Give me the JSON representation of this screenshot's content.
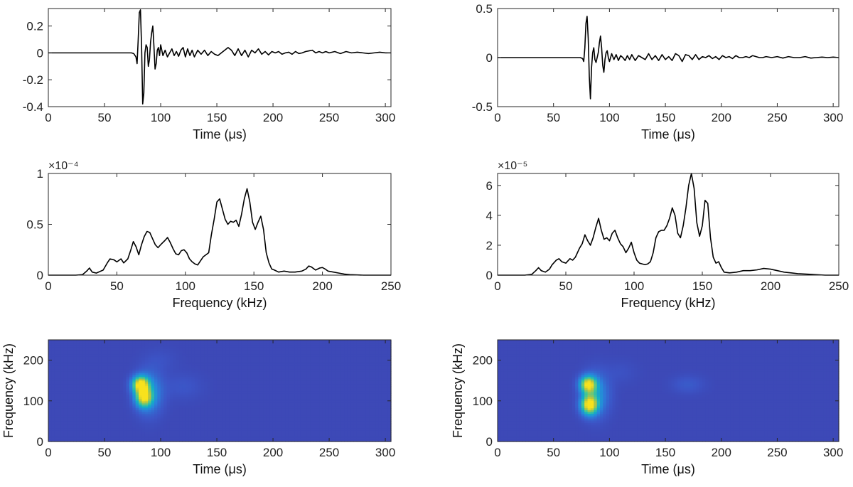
{
  "colors": {
    "line": "#000000",
    "axis": "#262626",
    "cmap": [
      "#3e2b8f",
      "#3c54c6",
      "#2a83dc",
      "#12aec6",
      "#4bc88f",
      "#b9c43e",
      "#f8e21d"
    ]
  },
  "chart_data": [
    {
      "id": "p11",
      "type": "line",
      "xlabel": "Time (μs)",
      "ylabel": "",
      "xlim": [
        0,
        305
      ],
      "ylim": [
        -0.4,
        0.33
      ],
      "xticks": [
        0,
        50,
        100,
        150,
        200,
        250,
        300
      ],
      "yticks": [
        -0.4,
        -0.2,
        0,
        0.2
      ],
      "xtick_labels": [
        "0",
        "50",
        "100",
        "150",
        "200",
        "250",
        "300"
      ],
      "ytick_labels": [
        "-0.4",
        "-0.2",
        "0",
        "0.2"
      ],
      "exponent": "",
      "series": [
        {
          "x": [
            0,
            70,
            74,
            76,
            78,
            79,
            80,
            81,
            82,
            83,
            84,
            85,
            86,
            87,
            88,
            89,
            90,
            91,
            92,
            93,
            94,
            95,
            96,
            97,
            98,
            99,
            100,
            102,
            104,
            106,
            108,
            110,
            112,
            114,
            116,
            118,
            120,
            122,
            124,
            126,
            128,
            130,
            133,
            136,
            139,
            142,
            145,
            148,
            151,
            154,
            157,
            160,
            163,
            166,
            169,
            172,
            175,
            178,
            181,
            184,
            187,
            190,
            193,
            196,
            199,
            202,
            205,
            208,
            211,
            214,
            217,
            220,
            223,
            226,
            229,
            232,
            235,
            238,
            241,
            244,
            247,
            250,
            255,
            260,
            265,
            270,
            275,
            280,
            285,
            290,
            295,
            300,
            305
          ],
          "y": [
            0,
            0,
            0,
            -0.005,
            -0.03,
            -0.08,
            0.1,
            0.3,
            0.32,
            0.05,
            -0.38,
            -0.3,
            0.0,
            0.06,
            0.04,
            -0.1,
            -0.05,
            0.08,
            0.15,
            0.2,
            0.05,
            -0.12,
            -0.08,
            0.02,
            0.04,
            -0.02,
            0.06,
            -0.02,
            0.02,
            -0.03,
            0.0,
            0.03,
            -0.02,
            0.01,
            -0.025,
            0.02,
            0.04,
            -0.03,
            0.03,
            -0.02,
            0.02,
            -0.03,
            0.02,
            -0.01,
            0.02,
            -0.02,
            0.01,
            -0.01,
            -0.02,
            0.0,
            0.02,
            0.04,
            0.02,
            -0.02,
            0.03,
            -0.02,
            0.02,
            -0.03,
            0.02,
            0.0,
            0.03,
            -0.01,
            0.01,
            -0.015,
            0.01,
            0.0,
            0.01,
            -0.01,
            0.0,
            0.005,
            -0.01,
            0.01,
            -0.005,
            0.0,
            0.01,
            0.015,
            0.02,
            0.0,
            0.01,
            0.0,
            0.01,
            0.0,
            0.01,
            -0.005,
            0.01,
            0.0,
            0.005,
            0.0,
            -0.005,
            0.0,
            0.005,
            0.0,
            0.0
          ]
        }
      ]
    },
    {
      "id": "p12",
      "type": "line",
      "xlabel": "Time (μs)",
      "ylabel": "",
      "xlim": [
        0,
        305
      ],
      "ylim": [
        -0.5,
        0.5
      ],
      "xticks": [
        0,
        50,
        100,
        150,
        200,
        250,
        300
      ],
      "yticks": [
        -0.5,
        0,
        0.5
      ],
      "xtick_labels": [
        "0",
        "50",
        "100",
        "150",
        "200",
        "250",
        "300"
      ],
      "ytick_labels": [
        "-0.5",
        "0",
        "0.5"
      ],
      "exponent": "",
      "series": [
        {
          "x": [
            0,
            70,
            74,
            76,
            77,
            78,
            79,
            80,
            81,
            82,
            83,
            84,
            85,
            86,
            87,
            88,
            89,
            90,
            91,
            92,
            93,
            94,
            95,
            96,
            97,
            98,
            99,
            100,
            102,
            104,
            106,
            108,
            110,
            112,
            114,
            116,
            118,
            120,
            123,
            126,
            129,
            132,
            135,
            138,
            141,
            144,
            147,
            150,
            153,
            156,
            159,
            162,
            165,
            168,
            171,
            174,
            177,
            180,
            183,
            186,
            189,
            192,
            195,
            198,
            201,
            204,
            207,
            210,
            213,
            216,
            219,
            222,
            225,
            228,
            231,
            234,
            237,
            240,
            245,
            250,
            255,
            260,
            265,
            270,
            275,
            280,
            285,
            290,
            295,
            300,
            305
          ],
          "y": [
            0,
            0,
            0,
            -0.01,
            -0.04,
            0.1,
            0.35,
            0.42,
            0.2,
            -0.2,
            -0.42,
            -0.1,
            0.05,
            0.1,
            -0.02,
            -0.05,
            0.0,
            0.05,
            0.15,
            0.22,
            0.1,
            -0.08,
            -0.15,
            -0.02,
            0.05,
            0.07,
            0.0,
            -0.04,
            0.04,
            -0.02,
            0.03,
            -0.03,
            0.02,
            0.0,
            -0.03,
            0.02,
            -0.02,
            0.03,
            -0.03,
            0.02,
            0.0,
            -0.02,
            0.04,
            -0.02,
            0.02,
            -0.03,
            0.03,
            -0.02,
            0.01,
            -0.03,
            0.04,
            0.02,
            -0.04,
            0.03,
            0.02,
            -0.02,
            0.03,
            -0.02,
            0.01,
            0.0,
            0.02,
            -0.01,
            0.01,
            -0.02,
            0.02,
            0.0,
            0.01,
            -0.01,
            0.02,
            0.0,
            0.0,
            0.01,
            0.0,
            0.02,
            0.01,
            0.0,
            0.0,
            0.01,
            0.0,
            0.01,
            -0.005,
            0.01,
            0.0,
            0.0,
            0.01,
            -0.005,
            0.0,
            0.005,
            0.0,
            0.005,
            0.0
          ]
        }
      ]
    },
    {
      "id": "p21",
      "type": "line",
      "xlabel": "Frequency (kHz)",
      "ylabel": "",
      "xlim": [
        0,
        250
      ],
      "ylim": [
        0,
        1
      ],
      "xticks": [
        0,
        50,
        100,
        150,
        200,
        250
      ],
      "yticks": [
        0,
        0.5,
        1
      ],
      "xtick_labels": [
        "0",
        "50",
        "100",
        "150",
        "200",
        "250"
      ],
      "ytick_labels": [
        "0",
        "0.5",
        "1"
      ],
      "exponent": "×10⁻⁴",
      "series": [
        {
          "x": [
            0,
            20,
            25,
            28,
            30,
            32,
            35,
            40,
            43,
            45,
            48,
            50,
            53,
            55,
            58,
            60,
            62,
            64,
            66,
            68,
            70,
            72,
            74,
            76,
            78,
            80,
            82,
            85,
            87,
            89,
            91,
            93,
            95,
            97,
            99,
            101,
            103,
            105,
            107,
            109,
            111,
            113,
            115,
            117,
            119,
            121,
            123,
            125,
            127,
            129,
            131,
            133,
            135,
            137,
            139,
            141,
            143,
            145,
            147,
            149,
            151,
            153,
            155,
            157,
            159,
            161,
            163,
            165,
            168,
            172,
            176,
            180,
            185,
            188,
            190,
            192,
            195,
            198,
            200,
            202,
            204,
            208,
            212,
            216,
            220,
            230,
            240,
            250
          ],
          "y": [
            0,
            0,
            0.005,
            0.04,
            0.07,
            0.03,
            0.02,
            0.05,
            0.12,
            0.16,
            0.15,
            0.13,
            0.16,
            0.12,
            0.16,
            0.24,
            0.33,
            0.28,
            0.2,
            0.3,
            0.38,
            0.43,
            0.42,
            0.36,
            0.3,
            0.27,
            0.3,
            0.34,
            0.37,
            0.32,
            0.26,
            0.21,
            0.2,
            0.24,
            0.25,
            0.22,
            0.16,
            0.13,
            0.11,
            0.1,
            0.14,
            0.18,
            0.2,
            0.22,
            0.4,
            0.55,
            0.72,
            0.75,
            0.65,
            0.55,
            0.5,
            0.53,
            0.52,
            0.54,
            0.48,
            0.6,
            0.75,
            0.85,
            0.72,
            0.52,
            0.45,
            0.52,
            0.58,
            0.45,
            0.22,
            0.12,
            0.06,
            0.05,
            0.03,
            0.04,
            0.03,
            0.03,
            0.04,
            0.06,
            0.09,
            0.08,
            0.05,
            0.07,
            0.075,
            0.06,
            0.04,
            0.03,
            0.02,
            0.01,
            0.005,
            0.0,
            0.0,
            0.0
          ]
        }
      ]
    },
    {
      "id": "p22",
      "type": "line",
      "xlabel": "Frequency (kHz)",
      "ylabel": "",
      "xlim": [
        0,
        250
      ],
      "ylim": [
        0,
        6.8
      ],
      "xticks": [
        0,
        50,
        100,
        150,
        200,
        250
      ],
      "yticks": [
        0,
        2,
        4,
        6
      ],
      "xtick_labels": [
        "0",
        "50",
        "100",
        "150",
        "200",
        "250"
      ],
      "ytick_labels": [
        "0",
        "2",
        "4",
        "6"
      ],
      "exponent": "×10⁻⁵",
      "series": [
        {
          "x": [
            0,
            20,
            25,
            28,
            30,
            32,
            35,
            38,
            40,
            43,
            45,
            47,
            50,
            53,
            55,
            57,
            60,
            62,
            64,
            66,
            68,
            70,
            72,
            74,
            76,
            78,
            80,
            82,
            84,
            86,
            88,
            90,
            92,
            94,
            96,
            98,
            100,
            102,
            104,
            106,
            108,
            110,
            112,
            114,
            116,
            118,
            120,
            122,
            124,
            126,
            128,
            130,
            132,
            134,
            136,
            138,
            140,
            142,
            144,
            146,
            148,
            150,
            152,
            154,
            156,
            158,
            160,
            162,
            164,
            166,
            170,
            175,
            180,
            185,
            190,
            195,
            200,
            205,
            210,
            215,
            220,
            230,
            240,
            250
          ],
          "y": [
            0,
            0,
            0.05,
            0.3,
            0.5,
            0.3,
            0.2,
            0.4,
            0.7,
            1.0,
            1.1,
            0.9,
            0.8,
            1.1,
            1.0,
            1.2,
            1.8,
            2.1,
            2.7,
            2.3,
            2.0,
            2.5,
            3.2,
            3.8,
            3.0,
            2.4,
            2.5,
            2.3,
            2.8,
            3.0,
            2.5,
            2.1,
            1.9,
            1.5,
            1.8,
            2.2,
            1.5,
            1.0,
            0.8,
            0.75,
            0.7,
            0.75,
            0.9,
            1.5,
            2.5,
            2.9,
            3.0,
            3.0,
            3.3,
            3.8,
            4.5,
            4.0,
            2.8,
            2.5,
            3.3,
            4.5,
            6.0,
            6.8,
            5.8,
            3.5,
            2.6,
            3.3,
            5.0,
            4.8,
            2.5,
            1.2,
            0.8,
            0.9,
            0.5,
            0.2,
            0.15,
            0.2,
            0.3,
            0.3,
            0.35,
            0.45,
            0.4,
            0.3,
            0.2,
            0.15,
            0.1,
            0.05,
            0.0,
            0.0
          ]
        }
      ]
    },
    {
      "id": "p31",
      "type": "heatmap",
      "xlabel": "Time (μs)",
      "ylabel": "Frequency (kHz)",
      "xlim": [
        0,
        305
      ],
      "ylim": [
        0,
        250
      ],
      "xticks": [
        0,
        50,
        100,
        150,
        200,
        250,
        300
      ],
      "yticks": [
        0,
        100,
        200
      ],
      "xtick_labels": [
        "0",
        "50",
        "100",
        "150",
        "200",
        "250",
        "300"
      ],
      "ytick_labels": [
        "0",
        "100",
        "200"
      ],
      "exponent": "",
      "blobs": [
        {
          "t": 82,
          "f": 140,
          "st": 5,
          "sf": 14,
          "a": 1.0
        },
        {
          "t": 85,
          "f": 108,
          "st": 5,
          "sf": 16,
          "a": 0.85
        },
        {
          "t": 90,
          "f": 120,
          "st": 8,
          "sf": 35,
          "a": 0.3
        },
        {
          "t": 120,
          "f": 135,
          "st": 12,
          "sf": 22,
          "a": 0.06
        },
        {
          "t": 100,
          "f": 200,
          "st": 10,
          "sf": 20,
          "a": 0.04
        }
      ]
    },
    {
      "id": "p32",
      "type": "heatmap",
      "xlabel": "Time (μs)",
      "ylabel": "Frequency (kHz)",
      "xlim": [
        0,
        305
      ],
      "ylim": [
        0,
        250
      ],
      "xticks": [
        0,
        50,
        100,
        150,
        200,
        250,
        300
      ],
      "yticks": [
        0,
        100,
        200
      ],
      "xtick_labels": [
        "0",
        "50",
        "100",
        "150",
        "200",
        "250",
        "300"
      ],
      "ytick_labels": [
        "0",
        "100",
        "200"
      ],
      "exponent": "",
      "blobs": [
        {
          "t": 81,
          "f": 140,
          "st": 5,
          "sf": 14,
          "a": 0.95
        },
        {
          "t": 82,
          "f": 90,
          "st": 5,
          "sf": 16,
          "a": 1.0
        },
        {
          "t": 88,
          "f": 115,
          "st": 8,
          "sf": 35,
          "a": 0.3
        },
        {
          "t": 170,
          "f": 140,
          "st": 10,
          "sf": 15,
          "a": 0.08
        },
        {
          "t": 110,
          "f": 170,
          "st": 10,
          "sf": 20,
          "a": 0.04
        }
      ]
    }
  ]
}
